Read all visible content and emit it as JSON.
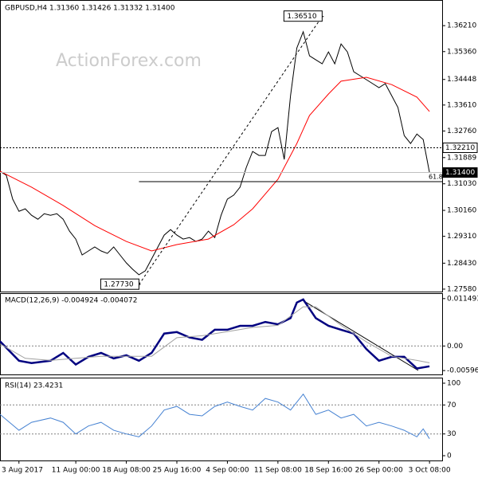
{
  "chart_data": {
    "type": "line",
    "title": "GBPUSD,H4  1.31360 1.31426 1.31332 1.31400",
    "watermark": "ActionForex.com",
    "xlim": [
      0,
      70
    ],
    "xticks": [
      {
        "value": 3,
        "label": "3 Aug 2017"
      },
      {
        "value": 12,
        "label": "11 Aug 00:00"
      },
      {
        "value": 20,
        "label": "18 Aug 08:00"
      },
      {
        "value": 28,
        "label": "25 Aug 16:00"
      },
      {
        "value": 36,
        "label": "4 Sep 00:00"
      },
      {
        "value": 44,
        "label": "11 Sep 08:00"
      },
      {
        "value": 52,
        "label": "18 Sep 16:00"
      },
      {
        "value": 60,
        "label": "26 Sep 00:00"
      },
      {
        "value": 68,
        "label": "3 Oct 08:00"
      }
    ],
    "ylim": [
      1.275,
      1.3705
    ],
    "yticks": [
      {
        "value": 1.3621,
        "label": "1.36210"
      },
      {
        "value": 1.3536,
        "label": "1.35360"
      },
      {
        "value": 1.34448,
        "label": "1.34448"
      },
      {
        "value": 1.3361,
        "label": "1.33610"
      },
      {
        "value": 1.3276,
        "label": "1.32760"
      },
      {
        "value": 1.31889,
        "label": "1.31889"
      },
      {
        "value": 1.3103,
        "label": "1.31030"
      },
      {
        "value": 1.3016,
        "label": "1.30160"
      },
      {
        "value": 1.2931,
        "label": "1.29310"
      },
      {
        "value": 1.2843,
        "label": "1.28430"
      },
      {
        "value": 1.2758,
        "label": "1.27580"
      }
    ],
    "series": [
      {
        "color": "#000000",
        "values": [
          1.3144,
          1.3131,
          1.3053,
          1.3013,
          1.3021,
          1.3,
          1.2987,
          1.3005,
          1.3,
          1.3005,
          1.2987,
          1.2948,
          1.2922,
          1.287,
          1.2883,
          1.2896,
          1.2883,
          1.2875,
          1.2896,
          1.287,
          1.2844,
          1.2823,
          1.2805,
          1.2818,
          1.2857,
          1.2896,
          1.2935,
          1.2953,
          1.2935,
          1.2922,
          1.2927,
          1.2914,
          1.2922,
          1.2948,
          1.2927,
          1.3,
          1.3053,
          1.3066,
          1.3092,
          1.3157,
          1.3209,
          1.3196,
          1.3196,
          1.3274,
          1.3287,
          1.3183,
          1.3392,
          1.3548,
          1.3601,
          1.3522,
          1.3509,
          1.3496,
          1.3535,
          1.3496,
          1.3561,
          1.3535,
          1.347,
          1.3457,
          1.3444,
          1.3431,
          1.3418,
          1.3431,
          1.3392,
          1.3353,
          1.3261,
          1.3235,
          1.3266,
          1.3248,
          1.314
        ]
      },
      {
        "color": "#ff0000",
        "x": [
          0,
          5,
          10,
          15,
          20,
          24,
          28,
          33,
          37,
          40,
          44,
          47,
          49,
          52,
          54,
          58,
          62,
          66,
          68
        ],
        "values": [
          1.3144,
          1.3092,
          1.3032,
          1.2966,
          1.2914,
          1.2883,
          1.2904,
          1.2922,
          1.2969,
          1.3021,
          1.3118,
          1.3235,
          1.3327,
          1.3397,
          1.3439,
          1.3452,
          1.3428,
          1.3387,
          1.334
        ]
      }
    ],
    "annotations": {
      "high": {
        "x": 51,
        "value": 1.3651,
        "label": "1.36510"
      },
      "low": {
        "x": 22,
        "value": 1.2773,
        "label": "1.27730"
      }
    },
    "levels": [
      {
        "value": 1.3221,
        "label": "1.32210",
        "style": "dashed"
      },
      {
        "value": 1.314,
        "label": "1.31400",
        "style": "current"
      }
    ],
    "fib": {
      "level": 61.8,
      "price": 1.311,
      "x": [
        22,
        70
      ]
    },
    "macd": {
      "title": "MACD(12,26,9) -0.004924 -0.004072",
      "ylim": [
        -0.0069,
        0.01281
      ],
      "yticks": [
        0.011493,
        {
          "value": 0,
          "label": "0.00"
        },
        -0.00596
      ],
      "series": [
        {
          "color": "#000080",
          "x": [
            0,
            3,
            5,
            8,
            10,
            12,
            14,
            16,
            18,
            20,
            22,
            24,
            26,
            28,
            30,
            32,
            34,
            36,
            38,
            40,
            42,
            44,
            46,
            47,
            48,
            50,
            52,
            54,
            56,
            58,
            60,
            62,
            64,
            66,
            68
          ],
          "values": [
            0.00113,
            -0.00357,
            -0.00414,
            -0.00357,
            -0.00169,
            -0.00451,
            -0.00263,
            -0.00169,
            -0.00301,
            -0.00226,
            -0.00357,
            -0.00169,
            0.00301,
            0.00338,
            0.00207,
            0.0015,
            0.00395,
            0.00395,
            0.00489,
            0.00489,
            0.00583,
            0.00526,
            0.00677,
            0.01053,
            0.01128,
            0.00677,
            0.00489,
            0.00395,
            0.00301,
            -0.00075,
            -0.00357,
            -0.00263,
            -0.00263,
            -0.00545,
            -0.004924
          ]
        },
        {
          "color": "#a0a0a0",
          "x": [
            0,
            4,
            8,
            12,
            16,
            20,
            24,
            28,
            32,
            36,
            40,
            44,
            48,
            50,
            54,
            58,
            62,
            66,
            68
          ],
          "values": [
            0.0005,
            -0.003,
            -0.0035,
            -0.003,
            -0.0025,
            -0.0025,
            -0.0025,
            0.002,
            0.0025,
            0.0035,
            0.0045,
            0.005,
            0.0095,
            0.0095,
            0.005,
            0.001,
            -0.0025,
            -0.0035,
            -0.004072
          ]
        }
      ]
    },
    "rsi": {
      "title": "RSI(14) 23.4231",
      "ylim": [
        -6.6,
        107.7
      ],
      "yticks": [
        100,
        70,
        30,
        0
      ],
      "series": [
        {
          "color": "#4682d2",
          "x": [
            0,
            3,
            5,
            8,
            10,
            12,
            14,
            16,
            18,
            20,
            22,
            24,
            26,
            28,
            30,
            32,
            34,
            36,
            38,
            40,
            42,
            44,
            46,
            48,
            50,
            52,
            54,
            56,
            58,
            60,
            62,
            64,
            66,
            67,
            68
          ],
          "values": [
            57,
            35,
            46,
            52,
            46,
            30,
            41,
            46,
            35,
            30,
            26,
            41,
            63,
            68,
            57,
            55,
            68,
            74,
            68,
            63,
            79,
            74,
            63,
            85,
            57,
            63,
            52,
            57,
            41,
            46,
            41,
            35,
            26,
            37,
            23.4231
          ]
        }
      ]
    }
  }
}
